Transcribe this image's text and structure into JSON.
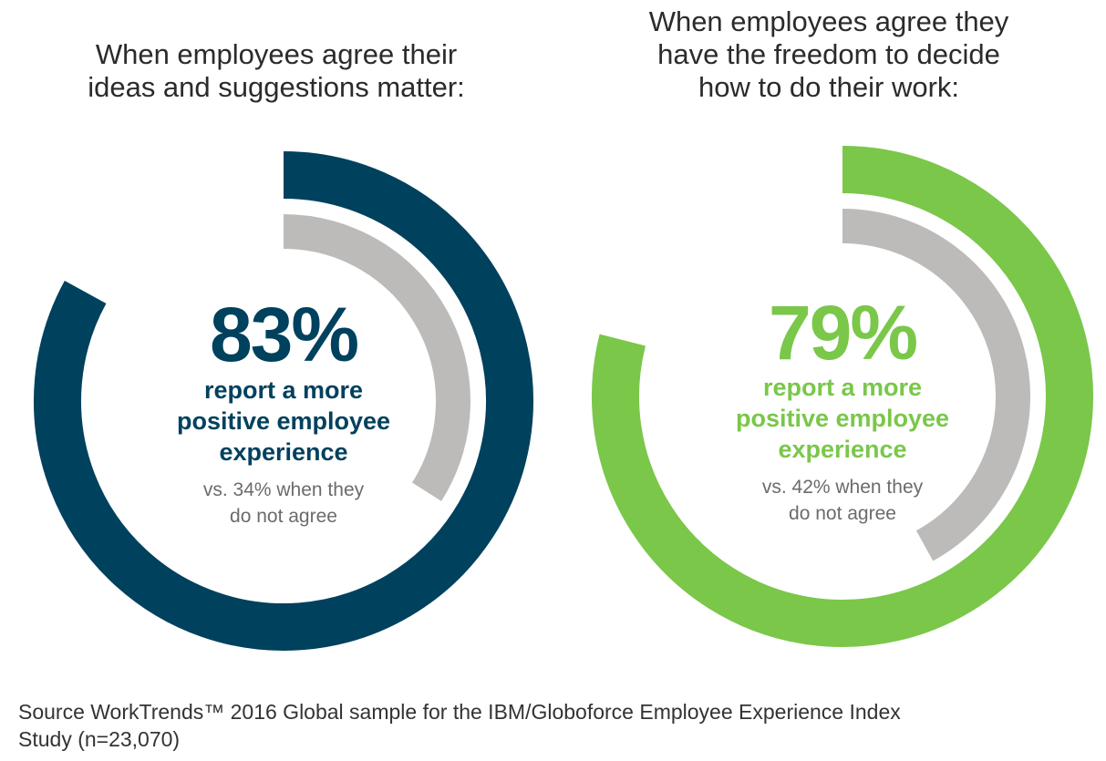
{
  "chart_data": [
    {
      "type": "donut",
      "title_lines": [
        "When employees agree their",
        "ideas and suggestions matter:"
      ],
      "value": 83,
      "value_label": "83%",
      "description_lines": [
        "report a more",
        "positive employee",
        "experience"
      ],
      "comparison_value": 34,
      "comparison_lines": [
        "vs. 34% when they",
        "do not agree"
      ],
      "color": "#00415e",
      "comparison_color": "#bdbbb9"
    },
    {
      "type": "donut",
      "title_lines": [
        "When employees agree they",
        "have the freedom to decide",
        "how to do their work:"
      ],
      "value": 79,
      "value_label": "79%",
      "description_lines": [
        "report a more",
        "positive employee",
        "experience"
      ],
      "comparison_value": 42,
      "comparison_lines": [
        "vs. 42% when they",
        "do not agree"
      ],
      "color": "#7ac74a",
      "comparison_color": "#bdbbb9"
    }
  ],
  "source_lines": [
    "Source WorkTrends™ 2016 Global sample for the IBM/Globoforce Employee Experience Index",
    "Study (n=23,070)"
  ]
}
